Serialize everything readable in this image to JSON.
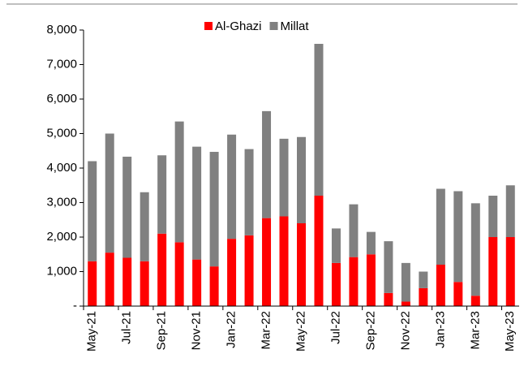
{
  "chart_data": {
    "type": "stacked_bar",
    "categories": [
      "May-21",
      null,
      "Jul-21",
      null,
      "Sep-21",
      null,
      "Nov-21",
      null,
      "Jan-22",
      null,
      "Mar-22",
      null,
      "May-22",
      null,
      "Jul-22",
      null,
      "Sep-22",
      null,
      "Nov-22",
      null,
      "Jan-23",
      null,
      "Mar-23",
      null,
      "May-23"
    ],
    "series": [
      {
        "name": "Al-Ghazi",
        "color": "#ff0000",
        "values": [
          1300,
          1550,
          1400,
          1300,
          2100,
          1850,
          1350,
          1150,
          1950,
          2050,
          2550,
          2600,
          2400,
          3200,
          1250,
          1420,
          1500,
          380,
          130,
          520,
          1200,
          700,
          300,
          2000,
          2000
        ]
      },
      {
        "name": "Millat",
        "color": "#808080",
        "values": [
          2900,
          3450,
          2930,
          2000,
          2270,
          3500,
          3270,
          3320,
          3020,
          2500,
          3100,
          2250,
          2500,
          4400,
          1000,
          1530,
          650,
          1500,
          1120,
          480,
          2200,
          2630,
          2680,
          1200,
          1500
        ]
      }
    ],
    "ylim": [
      0,
      8000
    ],
    "yticks": [
      {
        "value": 0,
        "label": "-"
      },
      {
        "value": 1000,
        "label": "1,000"
      },
      {
        "value": 2000,
        "label": "2,000"
      },
      {
        "value": 3000,
        "label": "3,000"
      },
      {
        "value": 4000,
        "label": "4,000"
      },
      {
        "value": 5000,
        "label": "5,000"
      },
      {
        "value": 6000,
        "label": "6,000"
      },
      {
        "value": 7000,
        "label": "7,000"
      },
      {
        "value": 8000,
        "label": "8,000"
      }
    ],
    "legend": "top"
  }
}
